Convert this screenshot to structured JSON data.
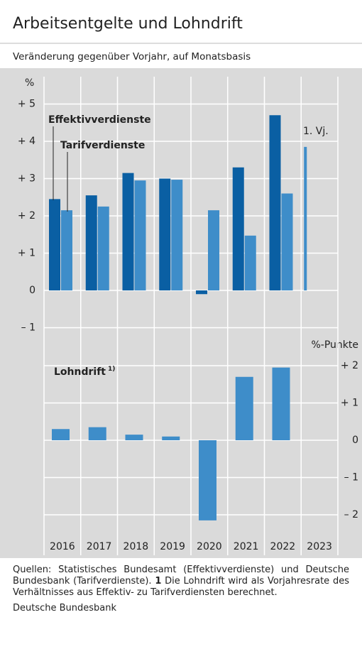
{
  "header": {
    "title": "Arbeitsentgelte und Lohndrift",
    "subtitle": "Veränderung gegenüber Vorjahr, auf Monatsbasis"
  },
  "chart_data": [
    {
      "type": "bar",
      "y_unit": "%",
      "annotation": "1. Vj.",
      "series": [
        {
          "name": "Effektivverdienste",
          "color": "#0a5fa3",
          "values": [
            2.45,
            2.55,
            3.15,
            3.0,
            -0.1,
            3.3,
            4.7,
            null
          ]
        },
        {
          "name": "Tarifverdienste",
          "color": "#3e8dc9",
          "values": [
            2.15,
            2.25,
            2.95,
            2.97,
            2.15,
            1.47,
            2.6,
            3.85
          ]
        }
      ],
      "ylim": [
        -1.2,
        5.3
      ],
      "yticks": [
        {
          "value": 5,
          "label": "+ 5"
        },
        {
          "value": 4,
          "label": "+ 4"
        },
        {
          "value": 3,
          "label": "+ 3"
        },
        {
          "value": 2,
          "label": "+ 2"
        },
        {
          "value": 1,
          "label": "+ 1"
        },
        0,
        {
          "value": -1,
          "label": "– 1"
        }
      ],
      "grid": true
    },
    {
      "type": "bar",
      "y_unit": "%-Punkte",
      "categories": [
        "2016",
        "2017",
        "2018",
        "2019",
        "2020",
        "2021",
        "2022",
        "2023"
      ],
      "series": [
        {
          "name": "Lohndrift",
          "footnote_marker": "1)",
          "color": "#3e8dc9",
          "values": [
            0.3,
            0.35,
            0.15,
            0.1,
            -2.15,
            1.7,
            1.95,
            null
          ]
        }
      ],
      "ylim": [
        -2.4,
        2.4
      ],
      "yticks": [
        {
          "value": 2,
          "label": "+ 2"
        },
        {
          "value": 1,
          "label": "+ 1"
        },
        0,
        {
          "value": -1,
          "label": "– 1"
        },
        {
          "value": -2,
          "label": "– 2"
        }
      ],
      "grid": true
    }
  ],
  "notes": {
    "sources": "Quellen: Statistisches Bundesamt (Effektivverdienste) und Deutsche Bundesbank (Tarifverdienste).",
    "footnote_number": "1",
    "footnote_text": "Die Lohndrift wird als Vorjahresrate des Verhältnisses aus Effektiv- zu Tarifverdiensten berechnet.",
    "publisher": "Deutsche Bundesbank"
  }
}
